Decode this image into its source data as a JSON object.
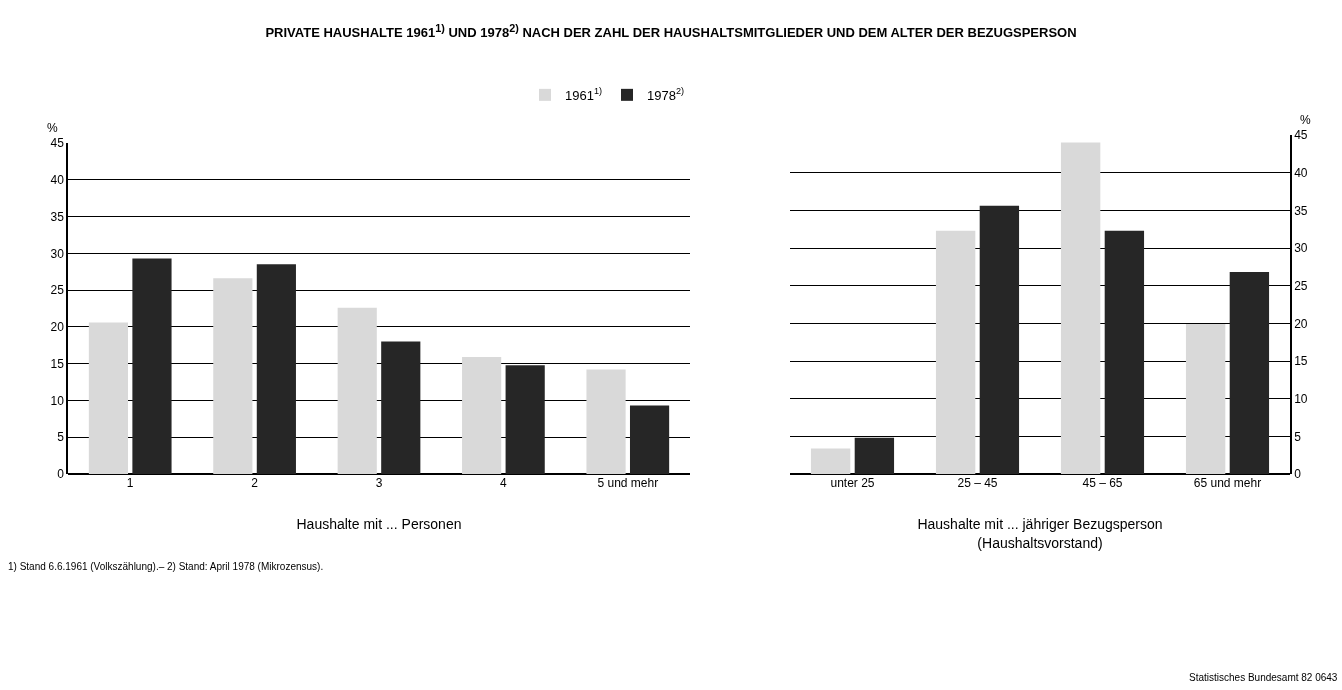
{
  "chart_data": [
    {
      "type": "bar",
      "title": "PRIVATE HAUSHALTE 1961$^{1)}$ UND 1978$^{2)}$ NACH DER ZAHL DER HAUSHALTSMITGLIEDER UND DEM ALTER DER BEZUGSPERSON",
      "xlabel": "Haushalte mit ... Personen",
      "ylabel": "%",
      "categories": [
        "1",
        "2",
        "3",
        "4",
        "5 und mehr"
      ],
      "series": [
        {
          "name": "1961$^{1)}$",
          "color": "#d9d9d9",
          "values": [
            20.6,
            26.6,
            22.6,
            15.9,
            14.2
          ]
        },
        {
          "name": "1978$^{2)}$",
          "color": "#262626",
          "values": [
            29.3,
            28.5,
            18.0,
            14.8,
            9.3
          ]
        }
      ],
      "ylim": [
        0,
        45
      ],
      "yticks": [
        0,
        5,
        10,
        15,
        20,
        25,
        30,
        35,
        40,
        45
      ],
      "grid": "y",
      "legend": "top right",
      "annotations": [
        "1) Stand 6.6.1961 (Volkszählung).– 2) Stand: April 1978 (Mikrozensus)."
      ]
    },
    {
      "type": "bar",
      "xlabel": "Haushalte mit ... jähriger Bezugsperson\n(Haushaltsvorstand)",
      "y2label": "%",
      "categories": [
        "unter 25",
        "25 – 45",
        "45 – 65",
        "65 und mehr"
      ],
      "series": [
        {
          "color": "#d9d9d9",
          "axis": "y2",
          "values": [
            3.4,
            32.3,
            44.0,
            19.9
          ]
        },
        {
          "color": "#262626",
          "axis": "y2",
          "values": [
            4.8,
            35.6,
            32.3,
            26.8
          ]
        }
      ],
      "y2lim": [
        0,
        45
      ],
      "y2ticks": [
        0,
        5,
        10,
        15,
        20,
        25,
        30,
        35,
        40,
        45
      ],
      "grid": "y",
      "annotations": [
        "Statistisches Bundesamt 82 0643"
      ]
    }
  ]
}
